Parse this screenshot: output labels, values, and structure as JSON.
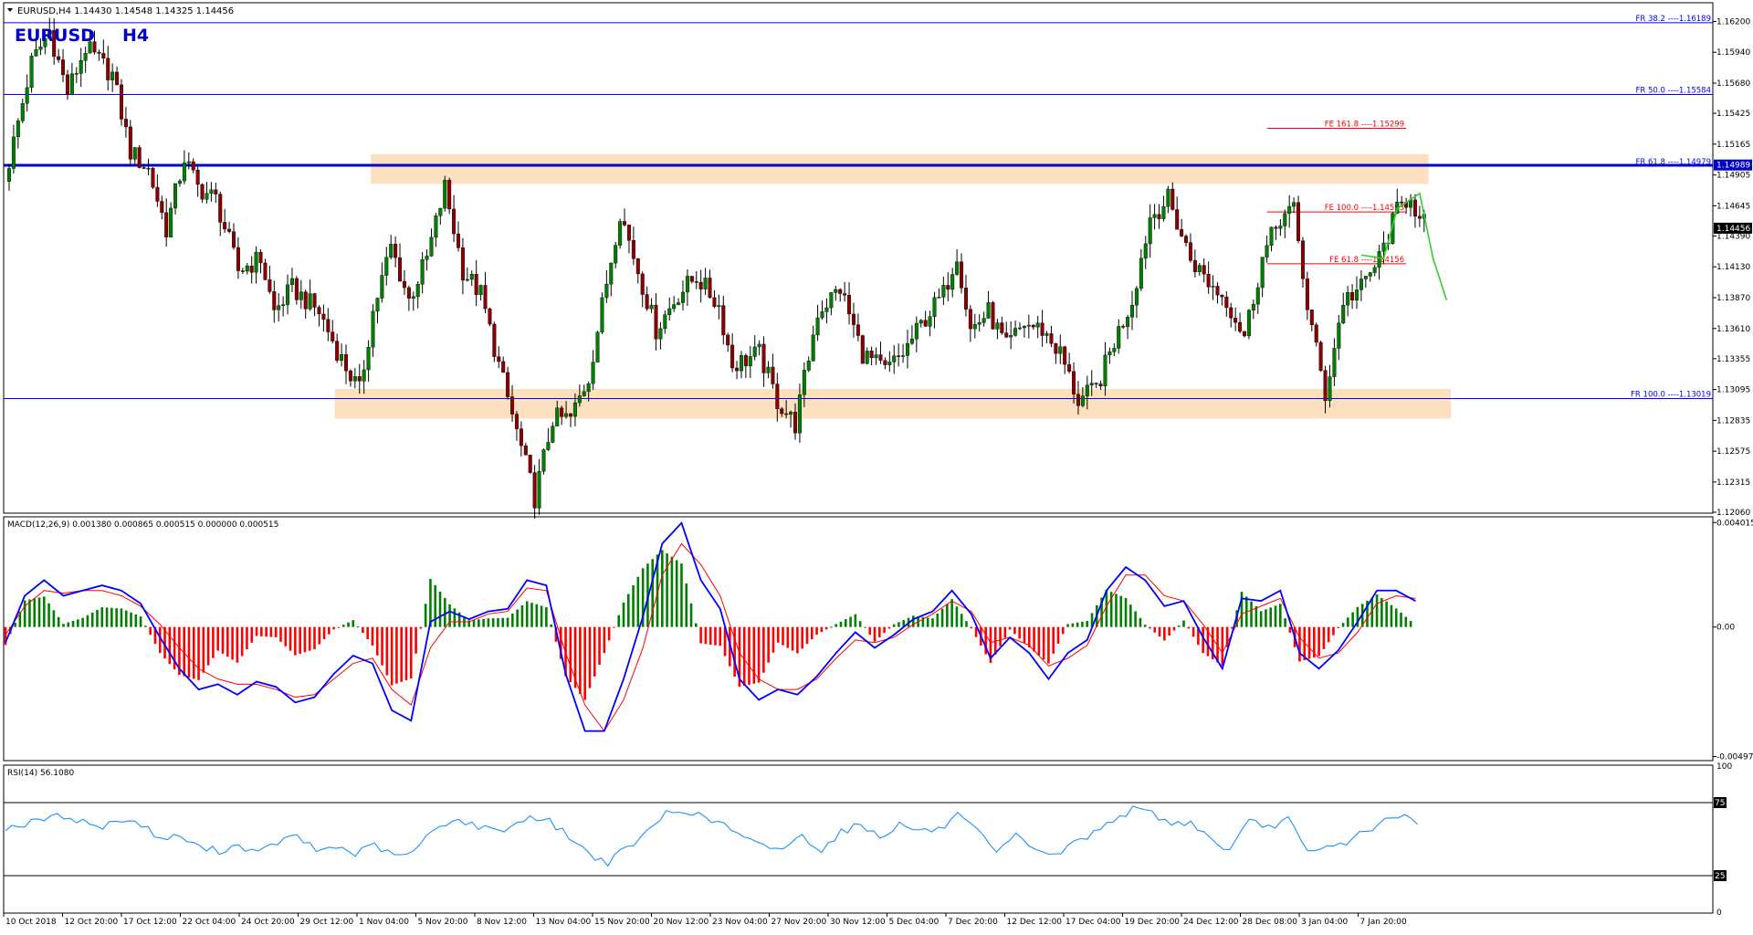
{
  "header": {
    "symbol_line": "EURUSD,H4  1.14430 1.14548 1.14325 1.14456",
    "big_symbol": "EURUSD",
    "big_tf": "H4"
  },
  "colors": {
    "bull": "#008000",
    "bear": "#8b0000",
    "blue": "#0000cc",
    "fr_line": "#0000ff",
    "fe_line": "#ff0000",
    "zone": "#fde0c0",
    "macd_line": "#0000ff",
    "signal_line": "#ff0000",
    "hist_pos": "#008000",
    "hist_neg": "#ff0000",
    "rsi_line": "#1e90ff",
    "projection": "#33cc33",
    "price_tag_bg": "#000000"
  },
  "chart_data": [
    {
      "type": "candlestick",
      "panel": "price",
      "ylim": [
        1.1206,
        1.1635
      ],
      "y_ticks": [
        "1.16200",
        "1.15940",
        "1.15680",
        "1.15425",
        "1.15165",
        "1.14905",
        "1.14645",
        "1.14390",
        "1.14130",
        "1.13870",
        "1.13610",
        "1.13355",
        "1.13095",
        "1.12835",
        "1.12575",
        "1.12315",
        "1.12060"
      ],
      "x_labels": [
        "10 Oct 2018",
        "12 Oct 20:00",
        "17 Oct 12:00",
        "22 Oct 04:00",
        "24 Oct 20:00",
        "29 Oct 12:00",
        "1 Nov 04:00",
        "5 Nov 20:00",
        "8 Nov 12:00",
        "13 Nov 04:00",
        "15 Nov 20:00",
        "20 Nov 12:00",
        "23 Nov 04:00",
        "27 Nov 20:00",
        "30 Nov 12:00",
        "5 Dec 04:00",
        "7 Dec 20:00",
        "12 Dec 12:00",
        "17 Dec 04:00",
        "19 Dec 20:00",
        "24 Dec 12:00",
        "28 Dec 08:00",
        "3 Jan 04:00",
        "7 Jan 20:00"
      ],
      "x_domain": [
        0,
        300
      ],
      "current_price": "1.14456",
      "path_anchors": [
        [
          0,
          1.1485
        ],
        [
          6,
          1.1585
        ],
        [
          10,
          1.1612
        ],
        [
          14,
          1.156
        ],
        [
          18,
          1.1598
        ],
        [
          24,
          1.1575
        ],
        [
          28,
          1.151
        ],
        [
          32,
          1.1495
        ],
        [
          36,
          1.1445
        ],
        [
          40,
          1.1505
        ],
        [
          43,
          1.148
        ],
        [
          47,
          1.147
        ],
        [
          52,
          1.141
        ],
        [
          57,
          1.142
        ],
        [
          60,
          1.1375
        ],
        [
          64,
          1.1395
        ],
        [
          70,
          1.1375
        ],
        [
          75,
          1.1335
        ],
        [
          79,
          1.1308
        ],
        [
          82,
          1.1375
        ],
        [
          86,
          1.143
        ],
        [
          90,
          1.1385
        ],
        [
          94,
          1.142
        ],
        [
          98,
          1.148
        ],
        [
          102,
          1.141
        ],
        [
          106,
          1.139
        ],
        [
          110,
          1.133
        ],
        [
          115,
          1.126
        ],
        [
          118,
          1.1218
        ],
        [
          122,
          1.1285
        ],
        [
          126,
          1.1285
        ],
        [
          130,
          1.132
        ],
        [
          134,
          1.14
        ],
        [
          137,
          1.146
        ],
        [
          141,
          1.141
        ],
        [
          145,
          1.136
        ],
        [
          150,
          1.139
        ],
        [
          154,
          1.1405
        ],
        [
          159,
          1.138
        ],
        [
          162,
          1.133
        ],
        [
          168,
          1.134
        ],
        [
          172,
          1.13
        ],
        [
          176,
          1.128
        ],
        [
          181,
          1.1375
        ],
        [
          186,
          1.1395
        ],
        [
          191,
          1.134
        ],
        [
          196,
          1.1325
        ],
        [
          200,
          1.134
        ],
        [
          205,
          1.137
        ],
        [
          209,
          1.139
        ],
        [
          212,
          1.1425
        ],
        [
          215,
          1.136
        ],
        [
          219,
          1.1375
        ],
        [
          223,
          1.1345
        ],
        [
          227,
          1.1365
        ],
        [
          231,
          1.136
        ],
        [
          235,
          1.134
        ],
        [
          239,
          1.13
        ],
        [
          243,
          1.131
        ],
        [
          247,
          1.135
        ],
        [
          251,
          1.1385
        ],
        [
          255,
          1.1455
        ],
        [
          259,
          1.147
        ],
        [
          264,
          1.142
        ],
        [
          268,
          1.14
        ],
        [
          272,
          1.1385
        ],
        [
          276,
          1.1355
        ],
        [
          280,
          1.142
        ],
        [
          284,
          1.1455
        ],
        [
          287,
          1.146
        ],
        [
          290,
          1.138
        ],
        [
          294,
          1.1305
        ],
        [
          298,
          1.1385
        ],
        [
          302,
          1.1395
        ],
        [
          306,
          1.142
        ],
        [
          310,
          1.146
        ],
        [
          313,
          1.1475
        ],
        [
          315,
          1.145
        ]
      ],
      "fib_levels": [
        {
          "label": "FR 38.2 ----1.16189",
          "value": 1.16189,
          "kind": "FR"
        },
        {
          "label": "FR 50.0 ----1.15584",
          "value": 1.15584,
          "kind": "FR"
        },
        {
          "label": "FE 161.8 ----1.15299",
          "value": 1.15299,
          "kind": "FE"
        },
        {
          "label": "FR 61.8 ----1.14979",
          "value": 1.14979,
          "kind": "FR"
        },
        {
          "label": "FE 100.0 ----1.14593",
          "value": 1.14593,
          "kind": "FE"
        },
        {
          "label": "FE 61.8 ----1.14156",
          "value": 1.14156,
          "kind": "FE"
        },
        {
          "label": "FR 100.0 ----1.13019",
          "value": 1.13019,
          "kind": "FR"
        }
      ],
      "resistance_line": {
        "value": 1.14989,
        "label": "1.14989"
      },
      "zones": [
        {
          "top": 1.1508,
          "bottom": 1.1483,
          "x0": 80.5,
          "x1": 316
        },
        {
          "top": 1.131,
          "bottom": 1.1285,
          "x0": 72.5,
          "x1": 321
        }
      ],
      "projection": [
        [
          301,
          1.1423
        ],
        [
          306,
          1.142
        ],
        [
          309,
          1.1462
        ],
        [
          314,
          1.1475
        ],
        [
          317,
          1.142
        ],
        [
          320,
          1.1385
        ]
      ]
    },
    {
      "type": "line",
      "panel": "macd",
      "label": "MACD(12,26,9) 0.001380 0.000865 0.000515 0.000000 0.000515",
      "y_ticks": [
        "0.004015",
        "0.00",
        "-0.004979"
      ],
      "ylim": [
        -0.0051,
        0.0042
      ],
      "series": [
        {
          "key": "macd",
          "values": [
            -0.0006,
            0.0012,
            0.0018,
            0.0012,
            0.0014,
            0.0016,
            0.0014,
            0.0009,
            -0.0004,
            -0.0016,
            -0.0024,
            -0.0022,
            -0.0026,
            -0.0021,
            -0.0023,
            -0.0029,
            -0.0027,
            -0.0018,
            -0.0011,
            -0.0014,
            -0.0032,
            -0.0036,
            0.0002,
            0.0006,
            0.0003,
            0.0006,
            0.0007,
            0.0018,
            0.0016,
            -0.0018,
            -0.004,
            -0.004,
            -0.002,
            0.0004,
            0.0032,
            0.004,
            0.0018,
            0.0007,
            -0.002,
            -0.0028,
            -0.0024,
            -0.0026,
            -0.0019,
            -0.001,
            -0.0002,
            -0.0008,
            -0.0003,
            0.0003,
            0.0006,
            0.0014,
            0.0005,
            -0.0012,
            -0.0004,
            -0.001,
            -0.002,
            -0.001,
            -0.0005,
            0.0014,
            0.0023,
            0.0018,
            0.0008,
            0.001,
            -0.0004,
            -0.0016,
            0.0011,
            0.001,
            0.0014,
            -0.001,
            -0.0016,
            -0.0009,
            0.0002,
            0.0014,
            0.0014,
            0.001
          ]
        },
        {
          "key": "signal",
          "values": [
            -0.0003,
            0.0008,
            0.0014,
            0.0013,
            0.0014,
            0.0014,
            0.0012,
            0.0008,
            0.0001,
            -0.0008,
            -0.0016,
            -0.002,
            -0.0022,
            -0.0022,
            -0.0024,
            -0.0027,
            -0.0026,
            -0.002,
            -0.0014,
            -0.0012,
            -0.0024,
            -0.003,
            -0.0008,
            0.0002,
            0.0002,
            0.0005,
            0.0006,
            0.0015,
            0.0014,
            -0.001,
            -0.003,
            -0.004,
            -0.0028,
            -0.0008,
            0.002,
            0.0032,
            0.0024,
            0.0012,
            -0.001,
            -0.002,
            -0.0024,
            -0.0024,
            -0.002,
            -0.0012,
            -0.0005,
            -0.0006,
            -0.0004,
            0.0001,
            0.0005,
            0.001,
            0.0006,
            -0.0006,
            -0.0004,
            -0.0007,
            -0.0015,
            -0.0012,
            -0.0007,
            0.0008,
            0.002,
            0.002,
            0.0012,
            0.001,
            0.0001,
            -0.001,
            0.0005,
            0.0008,
            0.0011,
            -0.0004,
            -0.0012,
            -0.001,
            -0.0002,
            0.0009,
            0.0012,
            0.0011
          ]
        }
      ]
    },
    {
      "type": "line",
      "panel": "rsi",
      "label": "RSI(14) 56.1080",
      "y_ticks": [
        "100",
        "75",
        "25",
        "0"
      ],
      "ylim": [
        0,
        100
      ],
      "levels": [
        75,
        25
      ],
      "series": [
        {
          "key": "rsi",
          "values": [
            58,
            60,
            64,
            66,
            62,
            58,
            64,
            60,
            50,
            52,
            44,
            42,
            46,
            40,
            48,
            52,
            42,
            45,
            40,
            46,
            38,
            41,
            56,
            64,
            60,
            56,
            58,
            66,
            62,
            52,
            40,
            34,
            44,
            54,
            68,
            70,
            64,
            60,
            50,
            45,
            44,
            52,
            43,
            55,
            60,
            52,
            60,
            56,
            56,
            66,
            55,
            40,
            52,
            44,
            38,
            48,
            54,
            64,
            70,
            68,
            60,
            62,
            50,
            42,
            62,
            58,
            64,
            40,
            44,
            48,
            56,
            62,
            66,
            56
          ]
        }
      ]
    }
  ]
}
